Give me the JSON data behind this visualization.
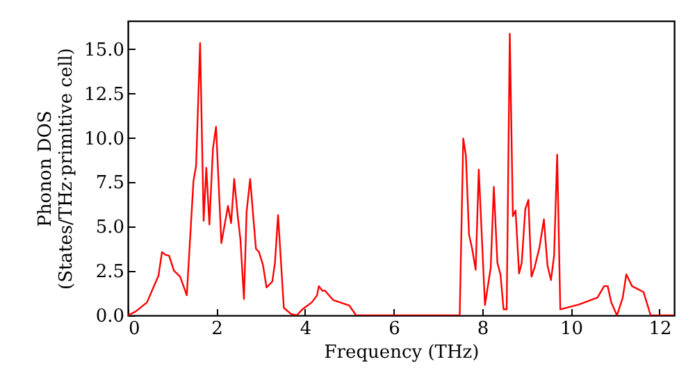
{
  "chart_data": {
    "type": "line",
    "xlabel": "Frequency (THz)",
    "ylabel": "Phonon DOS\n(States/THz·primitive cell)",
    "x": [
      0,
      0.17,
      0.43,
      0.69,
      0.77,
      0.85,
      0.93,
      1.04,
      1.18,
      1.33,
      1.48,
      1.54,
      1.63,
      1.71,
      1.77,
      1.84,
      1.92,
      1.99,
      2.11,
      2.26,
      2.33,
      2.4,
      2.48,
      2.54,
      2.62,
      2.68,
      2.76,
      2.89,
      2.96,
      3.05,
      3.13,
      3.26,
      3.32,
      3.39,
      3.52,
      3.68,
      3.81,
      3.94,
      4.15,
      4.27,
      4.31,
      4.39,
      4.45,
      4.63,
      5.0,
      5.15,
      7.49,
      7.57,
      7.63,
      7.7,
      7.77,
      7.85,
      7.92,
      8.06,
      8.19,
      8.26,
      8.34,
      8.41,
      8.48,
      8.55,
      8.62,
      8.69,
      8.75,
      8.83,
      8.89,
      8.97,
      9.04,
      9.11,
      9.18,
      9.29,
      9.39,
      9.47,
      9.55,
      9.62,
      9.69,
      9.76,
      10.18,
      10.6,
      10.75,
      10.83,
      10.91,
      11.04,
      11.17,
      11.25,
      11.38,
      11.64,
      11.8,
      12.32
    ],
    "series": [
      {
        "color": "#ff0000",
        "values": [
          0,
          0.21,
          0.73,
          2.23,
          3.57,
          3.41,
          3.36,
          2.52,
          2.18,
          1.13,
          7.56,
          8.43,
          15.35,
          5.33,
          8.32,
          5.12,
          9.39,
          10.63,
          4.07,
          6.17,
          5.2,
          7.69,
          5.59,
          4.28,
          0.92,
          5.85,
          7.69,
          3.76,
          3.57,
          2.83,
          1.57,
          1.91,
          2.97,
          5.65,
          0.42,
          0.08,
          0,
          0.34,
          0.73,
          1.13,
          1.65,
          1.39,
          1.39,
          0.87,
          0.55,
          0,
          0,
          9.97,
          9.0,
          4.54,
          3.76,
          2.57,
          8.21,
          0.58,
          2.7,
          7.24,
          2.97,
          2.31,
          0.34,
          0.34,
          15.88,
          5.59,
          5.91,
          2.36,
          2.97,
          5.98,
          6.51,
          2.18,
          2.7,
          3.83,
          5.41,
          2.83,
          1.99,
          3.36,
          9.06,
          0.34,
          0.61,
          1.0,
          1.65,
          1.65,
          0.73,
          0,
          1.0,
          2.31,
          1.65,
          1.31,
          0,
          0
        ]
      }
    ],
    "xlim": [
      0,
      12.33
    ],
    "ylim": [
      0,
      16.6
    ],
    "xticks": [
      0,
      2,
      4,
      6,
      8,
      10,
      12
    ],
    "yticks": [
      {
        "value": 0,
        "label": "0.0"
      },
      {
        "value": 2.5,
        "label": "2.5"
      },
      {
        "value": 5,
        "label": "5.0"
      },
      {
        "value": 7.5,
        "label": "7.5"
      },
      {
        "value": 10,
        "label": "10.0"
      },
      {
        "value": 12.5,
        "label": "12.5"
      },
      {
        "value": 15,
        "label": "15.0"
      }
    ],
    "grid": false,
    "line_style": "solid",
    "marker": "none"
  }
}
